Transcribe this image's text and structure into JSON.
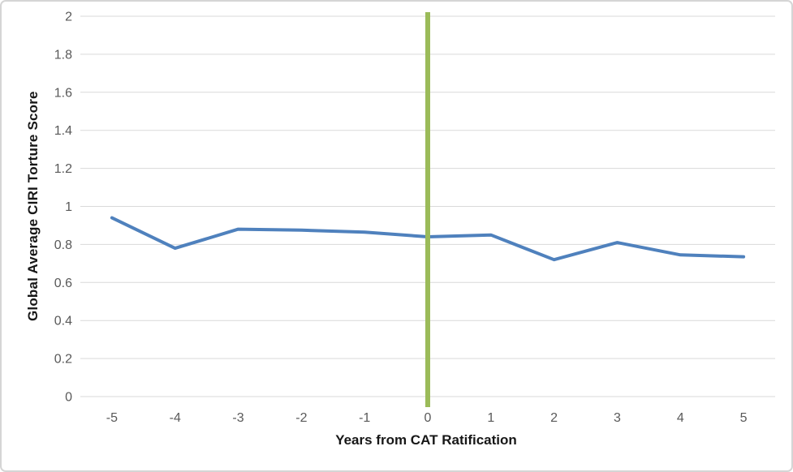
{
  "chart_data": {
    "type": "line",
    "title": "",
    "xlabel": "Years from CAT Ratification",
    "ylabel": "Global Average CIRI Torture Score",
    "x": [
      -5,
      -4,
      -3,
      -2,
      -1,
      0,
      1,
      2,
      3,
      4,
      5
    ],
    "xticks": [
      "-5",
      "-4",
      "-3",
      "-2",
      "-1",
      "0",
      "1",
      "2",
      "3",
      "4",
      "5"
    ],
    "series": [
      {
        "name": "Global Average CIRI Torture Score",
        "values": [
          0.94,
          0.78,
          0.88,
          0.875,
          0.865,
          0.84,
          0.85,
          0.72,
          0.81,
          0.745,
          0.735
        ],
        "color": "#4F81BD",
        "stroke_width": 4
      }
    ],
    "vline": {
      "x": 0,
      "color": "#9BBB59",
      "stroke_width": 6
    },
    "ylim": [
      0,
      2
    ],
    "yticks": [
      "0",
      "0.2",
      "0.4",
      "0.6",
      "0.8",
      "1",
      "1.2",
      "1.4",
      "1.6",
      "1.8",
      "2"
    ],
    "ytick_values": [
      0,
      0.2,
      0.4,
      0.6,
      0.8,
      1,
      1.2,
      1.4,
      1.6,
      1.8,
      2
    ],
    "grid": "horizontal",
    "legend": "none",
    "colors": {
      "gridline": "#D9D9D9",
      "tick_label": "#595959",
      "axis_title": "#171717",
      "background": "#FFFFFF",
      "frame_border": "#D5D5D5"
    }
  }
}
